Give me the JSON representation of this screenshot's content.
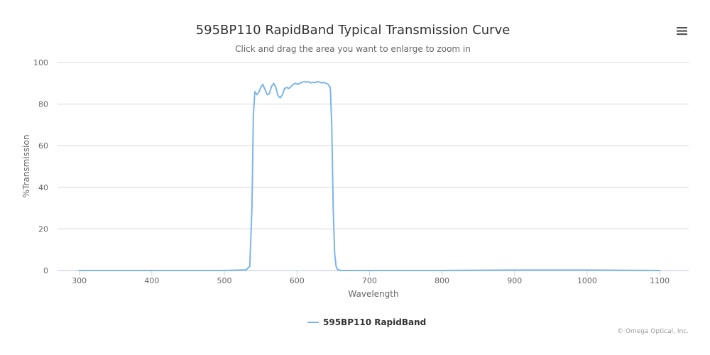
{
  "chart_data": {
    "type": "line",
    "title": "595BP110 RapidBand Typical Transmission Curve",
    "subtitle": "Click and drag the area you want to enlarge to zoom in",
    "xlabel": "Wavelength",
    "ylabel": "%Transmission",
    "xlim": [
      270,
      1140
    ],
    "ylim": [
      0,
      100
    ],
    "x_ticks": [
      300,
      400,
      500,
      600,
      700,
      800,
      900,
      1000,
      1100
    ],
    "y_ticks": [
      0,
      20,
      40,
      60,
      80,
      100
    ],
    "grid": true,
    "legend_position": "bottom-center",
    "series": [
      {
        "name": "595BP110 RapidBand",
        "color": "#7cb5ec",
        "x": [
          300,
          400,
          500,
          530,
          535,
          538,
          540,
          542,
          545,
          548,
          550,
          553,
          556,
          559,
          562,
          565,
          568,
          571,
          574,
          577,
          580,
          583,
          586,
          589,
          592,
          595,
          598,
          601,
          604,
          607,
          610,
          613,
          616,
          619,
          622,
          625,
          628,
          631,
          634,
          637,
          640,
          643,
          646,
          648,
          650,
          652,
          654,
          656,
          660,
          700,
          800,
          900,
          1000,
          1100
        ],
        "y": [
          0,
          0,
          0,
          0.3,
          2,
          30,
          75,
          86,
          84.5,
          86,
          88,
          89.5,
          87,
          84.5,
          85,
          88.5,
          90,
          88,
          84,
          83,
          84.5,
          87.5,
          88,
          87.5,
          88.5,
          89.5,
          90,
          89.5,
          90,
          90.5,
          90.8,
          90.5,
          90.8,
          90.2,
          90.5,
          90.3,
          90.8,
          90.6,
          90.2,
          90.4,
          90,
          89.5,
          88,
          70,
          30,
          8,
          2,
          0.5,
          0,
          0,
          0,
          0.2,
          0.2,
          0
        ]
      }
    ]
  },
  "ui": {
    "credit": "© Omega Optical, Inc.",
    "menu_icon": "hamburger-menu-icon"
  }
}
